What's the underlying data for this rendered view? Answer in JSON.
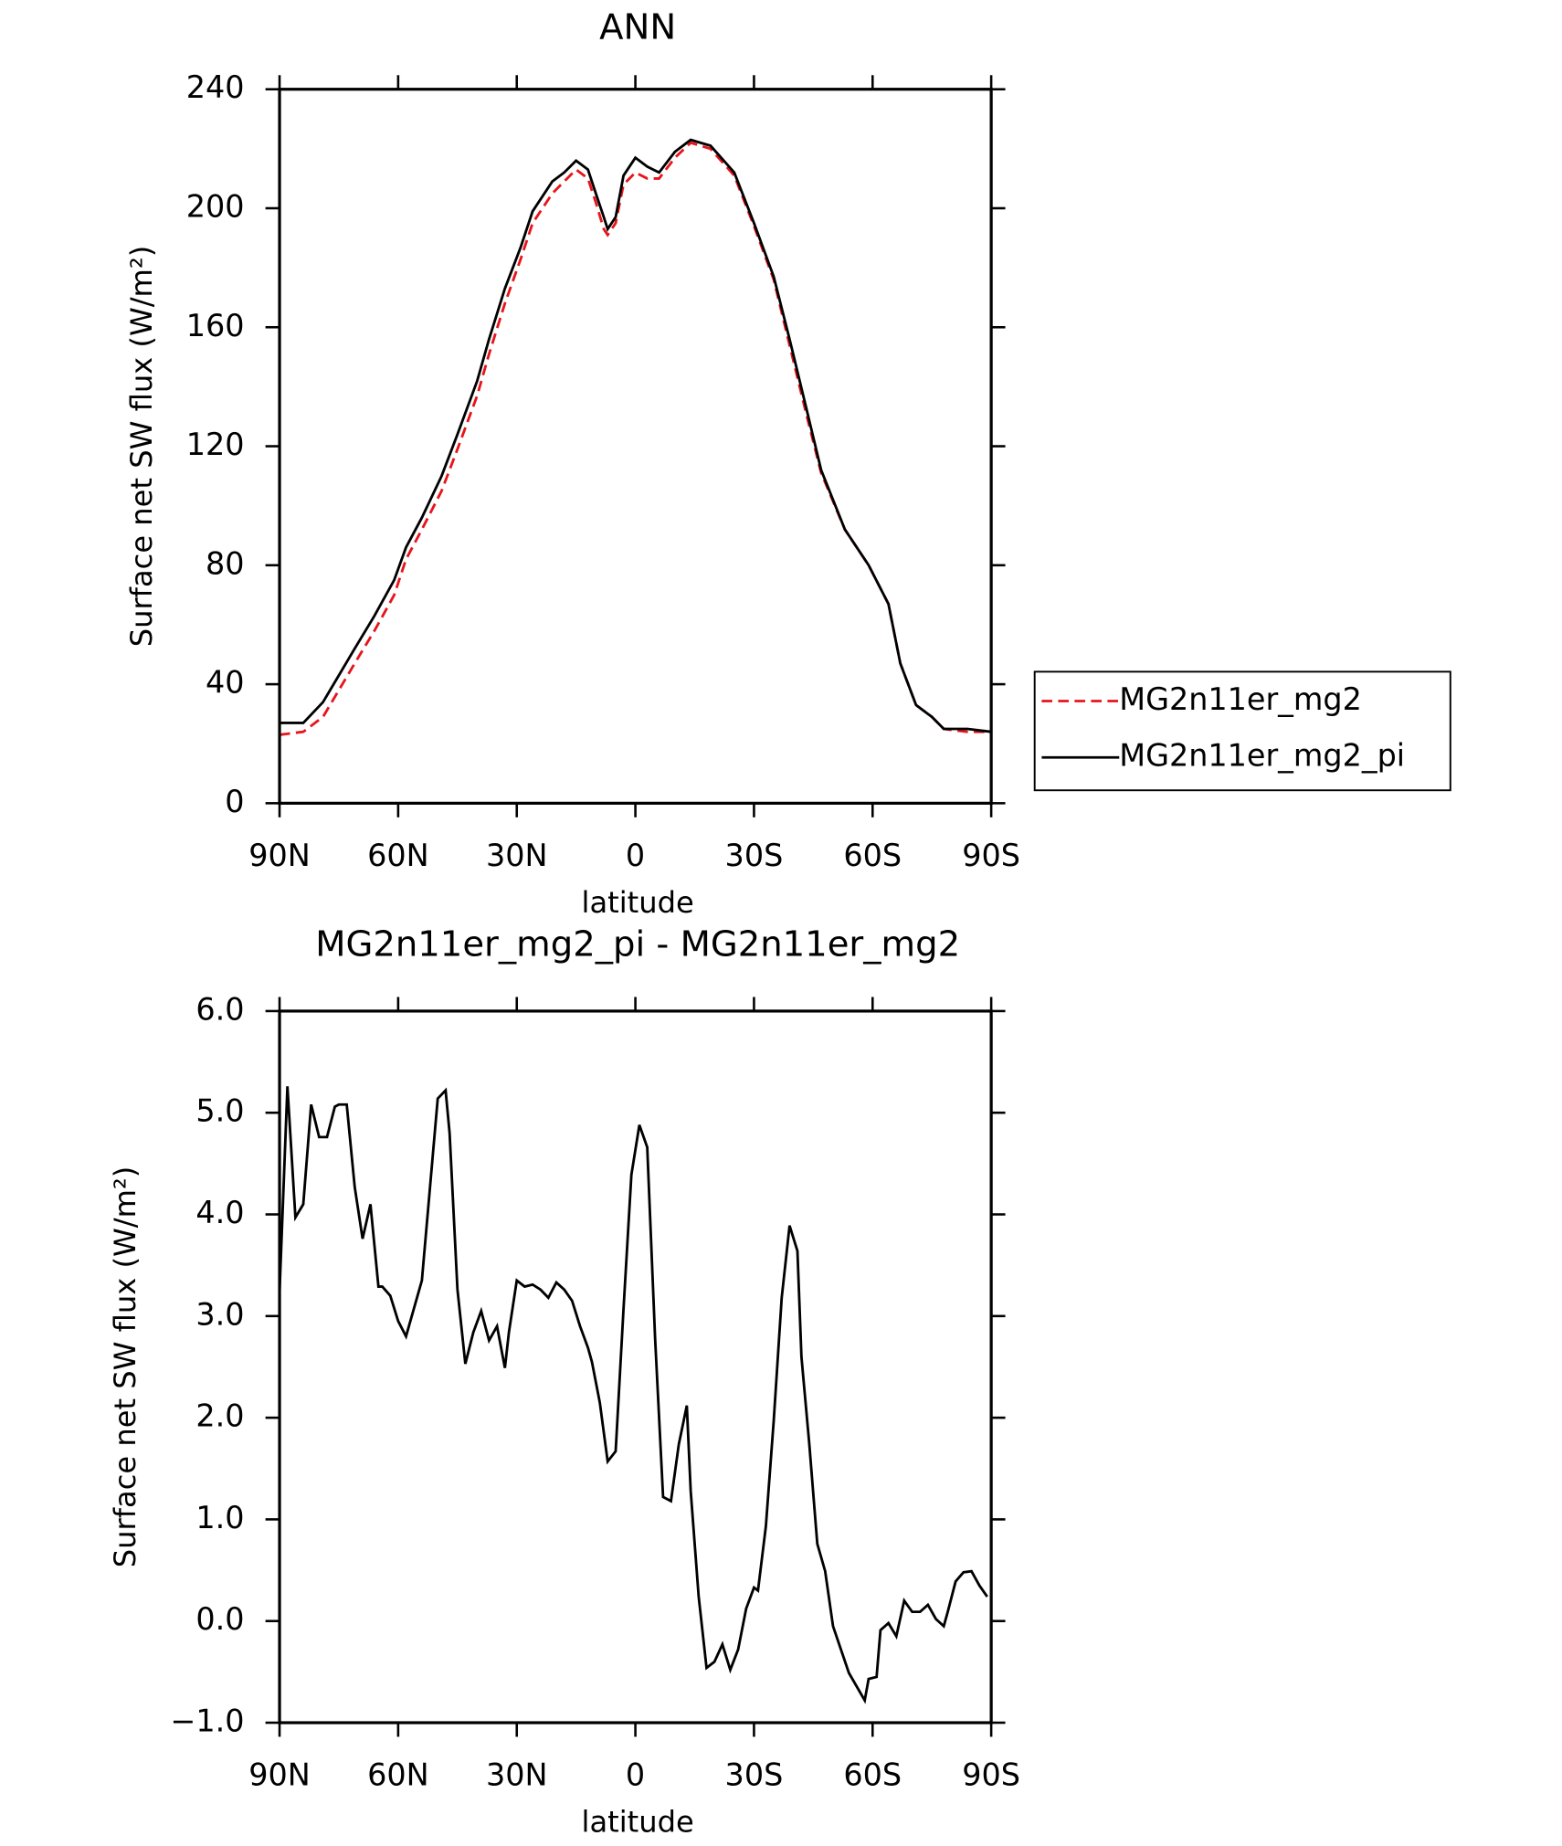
{
  "chart_data": [
    {
      "type": "line",
      "title": "ANN",
      "xlabel": "latitude",
      "ylabel": "Surface net SW flux (W/m²)",
      "x": [
        90,
        84,
        79,
        75,
        71,
        66,
        61,
        58,
        54,
        49,
        45,
        40,
        37,
        33,
        29,
        26,
        21,
        18,
        15,
        12,
        10,
        8,
        7,
        5,
        3,
        0,
        -3,
        -6,
        -10,
        -14,
        -19,
        -25,
        -30,
        -35,
        -39,
        -43,
        -47,
        -53,
        -59,
        -64,
        -67,
        -71,
        -75,
        -78,
        -84,
        -90
      ],
      "series": [
        {
          "name": "MG2n11er_mg2",
          "color": "#e8141b",
          "linestyle": "dashed",
          "values": [
            23,
            24,
            29,
            38,
            47,
            58,
            70,
            82,
            92,
            105,
            119,
            137,
            151,
            168,
            183,
            195,
            205,
            209,
            213,
            210,
            202,
            193,
            191,
            195,
            208,
            212,
            210,
            210,
            217,
            222,
            220,
            211,
            194,
            176,
            154,
            132,
            111,
            92,
            80,
            67,
            47,
            33,
            29,
            25,
            24,
            24
          ]
        },
        {
          "name": "MG2n11er_mg2_pi",
          "color": "#000000",
          "linestyle": "solid",
          "values": [
            27,
            27,
            34,
            43,
            52,
            63,
            75,
            86,
            96,
            110,
            124,
            142,
            156,
            173,
            187,
            199,
            209,
            212,
            216,
            213,
            205,
            197,
            193,
            197,
            211,
            217,
            214,
            212,
            219,
            223,
            221,
            212,
            195,
            177,
            156,
            134,
            112,
            92,
            80,
            67,
            47,
            33,
            29,
            25,
            25,
            24
          ]
        }
      ],
      "xlim": [
        90,
        -90
      ],
      "xticks": [
        {
          "value": 90,
          "label": "90N"
        },
        {
          "value": 60,
          "label": "60N"
        },
        {
          "value": 30,
          "label": "30N"
        },
        0,
        {
          "value": -30,
          "label": "30S"
        },
        {
          "value": -60,
          "label": "60S"
        },
        {
          "value": -90,
          "label": "90S"
        }
      ],
      "ylim": [
        0,
        240
      ],
      "yticks": [
        0,
        40,
        80,
        120,
        160,
        200,
        240
      ],
      "legend": "outside-right"
    },
    {
      "type": "line",
      "title": "MG2n11er_mg2_pi - MG2n11er_mg2",
      "xlabel": "latitude",
      "ylabel": "Surface net SW flux (W/m²)",
      "x": [
        90,
        88,
        86,
        84,
        82,
        80,
        78,
        76,
        75,
        73,
        71,
        69,
        67,
        65,
        64,
        62,
        60,
        58,
        54,
        50,
        48,
        47,
        45,
        43,
        41,
        39,
        37,
        35,
        33,
        32,
        30,
        28,
        26,
        24,
        22,
        20,
        18,
        16,
        14,
        12,
        11,
        9,
        7,
        5,
        3,
        1,
        -1,
        -3,
        -5,
        -7,
        -9,
        -11,
        -13,
        -14,
        -16,
        -18,
        -20,
        -22,
        -24,
        -26,
        -28,
        -30,
        -31,
        -33,
        -35,
        -37,
        -39,
        -41,
        -42,
        -44,
        -46,
        -48,
        -50,
        -54,
        -58,
        -59,
        -61,
        -62,
        -64,
        -66,
        -68,
        -70,
        -72,
        -74,
        -76,
        -78,
        -79,
        -81,
        -83,
        -85,
        -87,
        -89
      ],
      "series": [
        {
          "name": "MG2n11er_mg2_pi - MG2n11er_mg2",
          "color": "#000000",
          "linestyle": "solid",
          "values": [
            3.24,
            5.26,
            3.97,
            4.1,
            5.08,
            4.76,
            4.76,
            5.06,
            5.08,
            5.08,
            4.27,
            3.76,
            4.1,
            3.29,
            3.29,
            3.2,
            2.95,
            2.8,
            3.35,
            5.14,
            5.22,
            4.8,
            3.26,
            2.53,
            2.84,
            3.05,
            2.76,
            2.9,
            2.49,
            2.84,
            3.35,
            3.29,
            3.31,
            3.26,
            3.18,
            3.33,
            3.26,
            3.15,
            2.9,
            2.69,
            2.55,
            2.15,
            1.57,
            1.67,
            3.07,
            4.39,
            4.88,
            4.66,
            2.78,
            1.22,
            1.18,
            1.74,
            2.12,
            1.28,
            0.24,
            -0.46,
            -0.4,
            -0.23,
            -0.48,
            -0.28,
            0.12,
            0.33,
            0.3,
            0.93,
            1.97,
            3.18,
            3.89,
            3.64,
            2.6,
            1.74,
            0.76,
            0.49,
            -0.05,
            -0.51,
            -0.78,
            -0.57,
            -0.55,
            -0.09,
            -0.02,
            -0.15,
            0.2,
            0.09,
            0.09,
            0.16,
            0.02,
            -0.05,
            0.09,
            0.39,
            0.48,
            0.49,
            0.35,
            0.24
          ]
        }
      ],
      "xlim": [
        90,
        -90
      ],
      "xticks": [
        {
          "value": 90,
          "label": "90N"
        },
        {
          "value": 60,
          "label": "60N"
        },
        {
          "value": 30,
          "label": "30N"
        },
        0,
        {
          "value": -30,
          "label": "30S"
        },
        {
          "value": -60,
          "label": "60S"
        },
        {
          "value": -90,
          "label": "90S"
        }
      ],
      "ylim": [
        -1,
        6
      ],
      "yticks": [
        {
          "value": -1,
          "label": "−1.0"
        },
        {
          "value": 0,
          "label": "0.0"
        },
        {
          "value": 1,
          "label": "1.0"
        },
        {
          "value": 2,
          "label": "2.0"
        },
        {
          "value": 3,
          "label": "3.0"
        },
        {
          "value": 4,
          "label": "4.0"
        },
        {
          "value": 5,
          "label": "5.0"
        },
        {
          "value": 6,
          "label": "6.0"
        }
      ]
    }
  ]
}
